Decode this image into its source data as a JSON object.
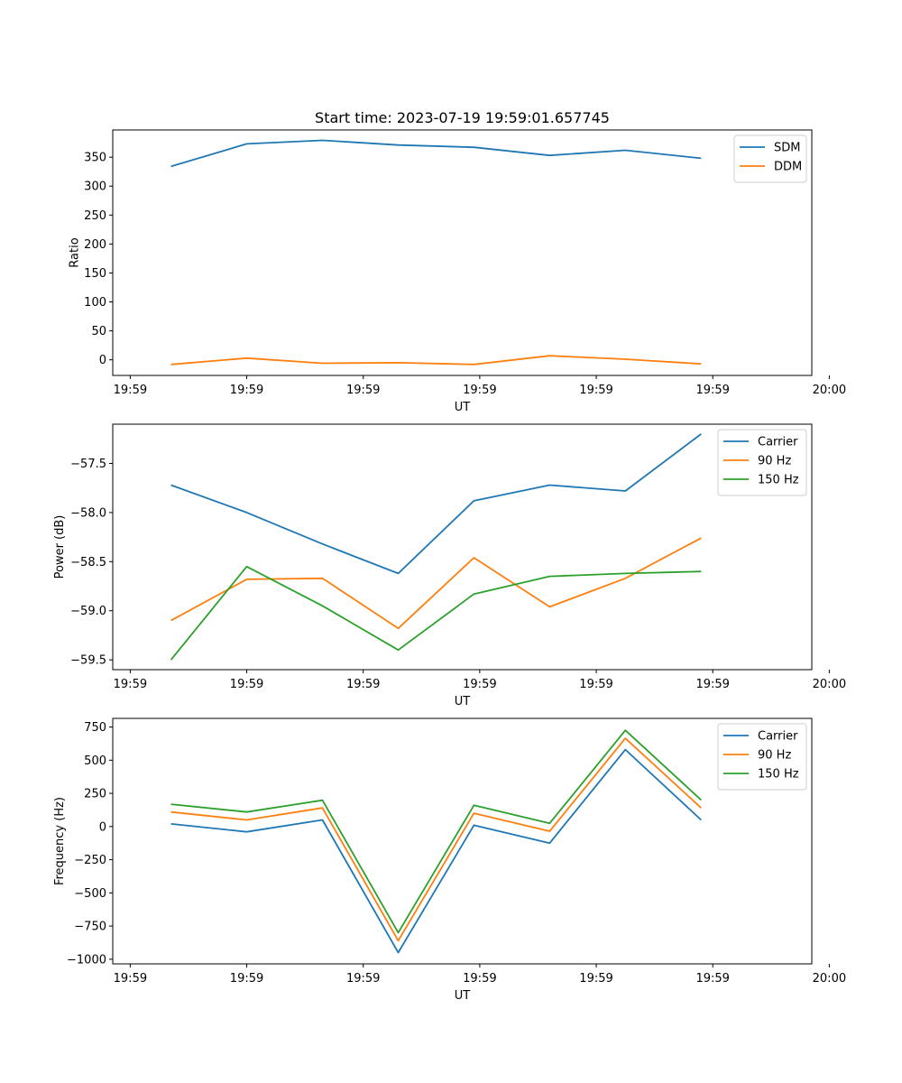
{
  "figure_title": "Start time: 2023-07-19 19:59:01.657745",
  "colors": {
    "blue": "#1f77b4",
    "orange": "#ff7f0e",
    "green": "#2ca02c"
  },
  "chart_data": [
    {
      "id": "ratio",
      "type": "line",
      "title": "Start time: 2023-07-19 19:59:01.657745",
      "xlabel": "UT",
      "ylabel": "Ratio",
      "xlim": [
        -0.5,
        5.5
      ],
      "x_ticks": [
        -0.35,
        0.65,
        1.65,
        2.65,
        3.65,
        4.65,
        5.65
      ],
      "x_tick_labels": [
        "19:59",
        "19:59",
        "19:59",
        "19:59",
        "19:59",
        "19:59",
        "20:00"
      ],
      "ylim": [
        -27,
        397
      ],
      "y_ticks": [
        0,
        50,
        100,
        150,
        200,
        250,
        300,
        350
      ],
      "y_tick_labels": [
        "0",
        "50",
        "100",
        "150",
        "200",
        "250",
        "300",
        "350"
      ],
      "legend_position": "top-right",
      "x": [
        0,
        0.65,
        1.3,
        1.95,
        2.6,
        3.25,
        3.9,
        4.55
      ],
      "series": [
        {
          "name": "SDM",
          "color": "#1f77b4",
          "values": [
            334,
            373,
            379,
            371,
            367,
            353,
            362,
            348
          ]
        },
        {
          "name": "DDM",
          "color": "#ff7f0e",
          "values": [
            -8,
            3,
            -6,
            -5,
            -8,
            7,
            1,
            -7
          ]
        }
      ]
    },
    {
      "id": "power",
      "type": "line",
      "title": "",
      "xlabel": "UT",
      "ylabel": "Power (dB)",
      "xlim": [
        -0.5,
        5.5
      ],
      "x_ticks": [
        -0.35,
        0.65,
        1.65,
        2.65,
        3.65,
        4.65,
        5.65
      ],
      "x_tick_labels": [
        "19:59",
        "19:59",
        "19:59",
        "19:59",
        "19:59",
        "19:59",
        "20:00"
      ],
      "ylim": [
        -59.6,
        -57.1
      ],
      "y_ticks": [
        -59.5,
        -59.0,
        -58.5,
        -58.0,
        -57.5
      ],
      "y_tick_labels": [
        "−59.5",
        "−59.0",
        "−58.5",
        "−58.0",
        "−57.5"
      ],
      "legend_position": "top-right",
      "x": [
        0,
        0.65,
        1.3,
        1.95,
        2.6,
        3.25,
        3.9,
        4.55
      ],
      "series": [
        {
          "name": "Carrier",
          "color": "#1f77b4",
          "values": [
            -57.72,
            -58.0,
            -58.32,
            -58.62,
            -57.88,
            -57.72,
            -57.78,
            -57.2
          ]
        },
        {
          "name": "90 Hz",
          "color": "#ff7f0e",
          "values": [
            -59.1,
            -58.68,
            -58.67,
            -59.18,
            -58.46,
            -58.96,
            -58.67,
            -58.26
          ]
        },
        {
          "name": "150 Hz",
          "color": "#2ca02c",
          "values": [
            -59.5,
            -58.55,
            -58.95,
            -59.4,
            -58.83,
            -58.65,
            -58.62,
            -58.6
          ]
        }
      ]
    },
    {
      "id": "frequency",
      "type": "line",
      "title": "",
      "xlabel": "UT",
      "ylabel": "Frequency (Hz)",
      "xlim": [
        -0.5,
        5.5
      ],
      "x_ticks": [
        -0.35,
        0.65,
        1.65,
        2.65,
        3.65,
        4.65,
        5.65
      ],
      "x_tick_labels": [
        "19:59",
        "19:59",
        "19:59",
        "19:59",
        "19:59",
        "19:59",
        "20:00"
      ],
      "ylim": [
        -1035,
        815
      ],
      "y_ticks": [
        -1000,
        -750,
        -500,
        -250,
        0,
        250,
        500,
        750
      ],
      "y_tick_labels": [
        "−1000",
        "−750",
        "−500",
        "−250",
        "0",
        "250",
        "500",
        "750"
      ],
      "legend_position": "top-right",
      "x": [
        0,
        0.65,
        1.3,
        1.95,
        2.6,
        3.25,
        3.9,
        4.55
      ],
      "series": [
        {
          "name": "Carrier",
          "color": "#1f77b4",
          "values": [
            20,
            -40,
            50,
            -950,
            10,
            -125,
            580,
            50
          ]
        },
        {
          "name": "90 Hz",
          "color": "#ff7f0e",
          "values": [
            110,
            50,
            140,
            -860,
            100,
            -35,
            665,
            140
          ]
        },
        {
          "name": "150 Hz",
          "color": "#2ca02c",
          "values": [
            168,
            110,
            198,
            -800,
            160,
            25,
            725,
            200
          ]
        }
      ]
    }
  ]
}
